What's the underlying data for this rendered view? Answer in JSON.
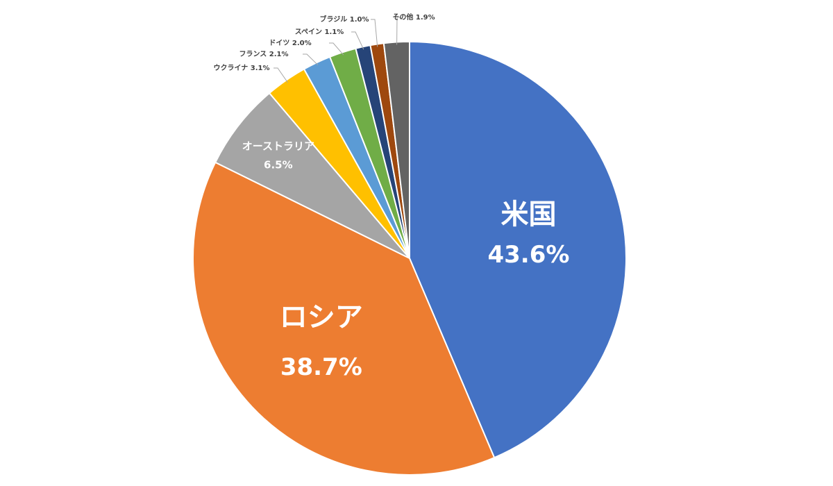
{
  "chart_data": {
    "type": "pie",
    "title": "",
    "start_angle_deg": 0,
    "direction": "clockwise",
    "slices": [
      {
        "name": "米国",
        "value": 43.6,
        "label": "43.6%",
        "color": "#4472C4"
      },
      {
        "name": "ロシア",
        "value": 38.7,
        "label": "38.7%",
        "color": "#ED7D31"
      },
      {
        "name": "オーストラリア",
        "value": 6.5,
        "label": "6.5%",
        "color": "#A5A5A5"
      },
      {
        "name": "ウクライナ",
        "value": 3.1,
        "label": "3.1%",
        "color": "#FFC000"
      },
      {
        "name": "フランス",
        "value": 2.1,
        "label": "2.1%",
        "color": "#5B9BD5"
      },
      {
        "name": "ドイツ",
        "value": 2.0,
        "label": "2.0%",
        "color": "#70AD47"
      },
      {
        "name": "スペイン",
        "value": 1.1,
        "label": "1.1%",
        "color": "#264478"
      },
      {
        "name": "ブラジル",
        "value": 1.0,
        "label": "1.0%",
        "color": "#9E480E"
      },
      {
        "name": "その他",
        "value": 1.9,
        "label": "1.9%",
        "color": "#636363"
      }
    ]
  }
}
